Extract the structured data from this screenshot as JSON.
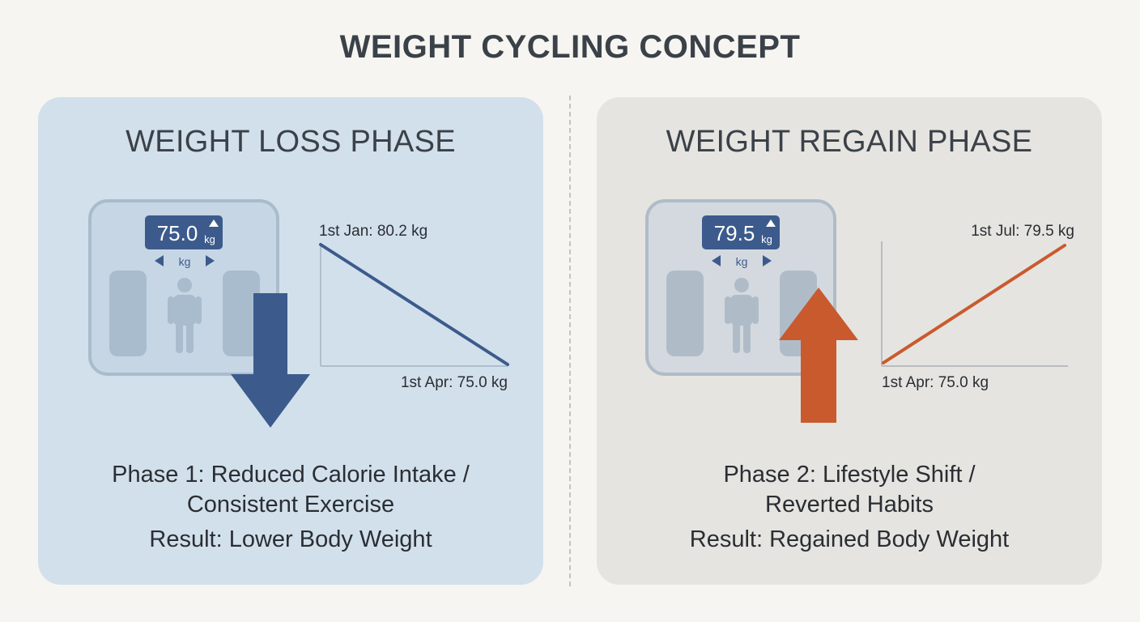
{
  "title": "WEIGHT CYCLING CONCEPT",
  "panels": [
    {
      "id": "loss",
      "heading": "WEIGHT LOSS PHASE",
      "scale_reading": "75.0",
      "scale_unit": "kg",
      "scale_sub_unit": "kg",
      "chart_start_label": "1st Jan: 80.2 kg",
      "chart_end_label": "1st Apr: 75.0 kg",
      "caption_line1": "Phase 1: Reduced Calorie Intake /",
      "caption_line2": "Consistent Exercise",
      "caption_line3": "Result: Lower Body Weight",
      "arrow_direction": "down",
      "arrow_color": "#3c5b8c",
      "trend_color": "#3c5b8c",
      "panel_color": "#d2e0ec"
    },
    {
      "id": "regain",
      "heading": "WEIGHT REGAIN PHASE",
      "scale_reading": "79.5",
      "scale_unit": "kg",
      "scale_sub_unit": "kg",
      "chart_start_label": "1st Apr: 75.0 kg",
      "chart_end_label": "1st Jul: 79.5 kg",
      "caption_line1": "Phase 2: Lifestyle Shift /",
      "caption_line2": "Reverted Habits",
      "caption_line3": "Result: Regained Body Weight",
      "arrow_direction": "up",
      "arrow_color": "#c95a2e",
      "trend_color": "#c95a2e",
      "panel_color": "#e5e4e0"
    }
  ]
}
